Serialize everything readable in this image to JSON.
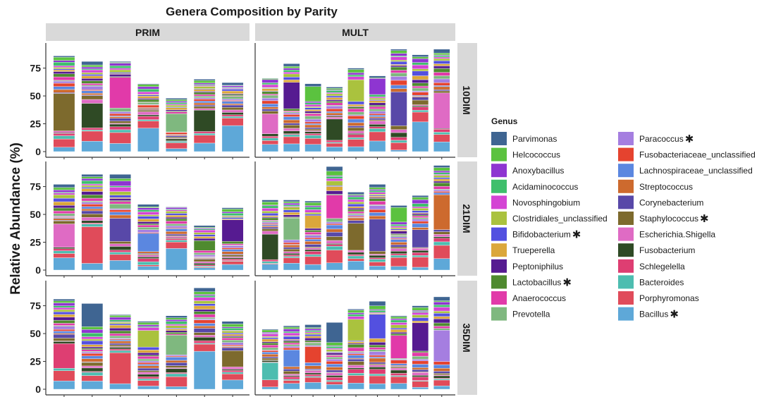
{
  "chart_data": {
    "type": "bar",
    "stacked": true,
    "title": "Genera Composition by Parity",
    "ylabel": "Relative Abundance (%)",
    "xlabel": "",
    "ylim": [
      0,
      95
    ],
    "yticks": [
      0,
      25,
      50,
      75
    ],
    "columns": [
      "PRIM",
      "MULT"
    ],
    "rows": [
      "10DIM",
      "21DIM",
      "35DIM"
    ],
    "legend_title": "Genus",
    "legend_position": "right",
    "genera": [
      {
        "name": "Parvimonas",
        "color": "#3f6592",
        "star": false
      },
      {
        "name": "Helcococcus",
        "color": "#5bc23f",
        "star": false
      },
      {
        "name": "Anoxybacillus",
        "color": "#8e35d1",
        "star": false
      },
      {
        "name": "Acidaminococcus",
        "color": "#3fbf6c",
        "star": false
      },
      {
        "name": "Novosphingobium",
        "color": "#d444d4",
        "star": false
      },
      {
        "name": "Clostridiales_unclassified",
        "color": "#aac23e",
        "star": false
      },
      {
        "name": "Bifidobacterium",
        "color": "#5350e0",
        "star": true
      },
      {
        "name": "Trueperella",
        "color": "#dba73b",
        "star": false
      },
      {
        "name": "Peptoniphilus",
        "color": "#561b91",
        "star": false
      },
      {
        "name": "Lactobacillus",
        "color": "#4f8a2f",
        "star": true
      },
      {
        "name": "Anaerococcus",
        "color": "#e13aa9",
        "star": false
      },
      {
        "name": "Prevotella",
        "color": "#7fb87f",
        "star": false
      },
      {
        "name": "Paracoccus",
        "color": "#a57ee0",
        "star": true
      },
      {
        "name": "Fusobacteriaceae_unclassified",
        "color": "#e5432f",
        "star": false
      },
      {
        "name": "Lachnospiraceae_unclassified",
        "color": "#5b87e0",
        "star": false
      },
      {
        "name": "Streptococcus",
        "color": "#cd6a2e",
        "star": false
      },
      {
        "name": "Corynebacterium",
        "color": "#5848a8",
        "star": false
      },
      {
        "name": "Staphylococcus",
        "color": "#7d6a2d",
        "star": true
      },
      {
        "name": "Escherichia.Shigella",
        "color": "#df6bc4",
        "star": false
      },
      {
        "name": "Fusobacterium",
        "color": "#2f4a25",
        "star": false
      },
      {
        "name": "Schlegelella",
        "color": "#de3e72",
        "star": false
      },
      {
        "name": "Bacteroides",
        "color": "#4dbdb0",
        "star": false
      },
      {
        "name": "Porphyromonas",
        "color": "#e04b5a",
        "star": false
      },
      {
        "name": "Bacillus",
        "color": "#5ea8d8",
        "star": true
      }
    ],
    "panels": [
      {
        "column": "PRIM",
        "row": "10DIM",
        "totals": [
          86,
          81,
          81,
          61,
          48,
          65,
          62
        ]
      },
      {
        "column": "MULT",
        "row": "10DIM",
        "totals": [
          66,
          79,
          61,
          58,
          75,
          68,
          92,
          87,
          92
        ]
      },
      {
        "column": "PRIM",
        "row": "21DIM",
        "totals": [
          77,
          86,
          86,
          59,
          57,
          40,
          56
        ]
      },
      {
        "column": "MULT",
        "row": "21DIM",
        "totals": [
          63,
          63,
          62,
          93,
          70,
          77,
          58,
          67,
          94
        ]
      },
      {
        "column": "PRIM",
        "row": "35DIM",
        "totals": [
          81,
          77,
          67,
          61,
          66,
          91,
          61
        ]
      },
      {
        "column": "MULT",
        "row": "35DIM",
        "totals": [
          54,
          57,
          58,
          60,
          72,
          79,
          66,
          75,
          83
        ]
      }
    ]
  }
}
